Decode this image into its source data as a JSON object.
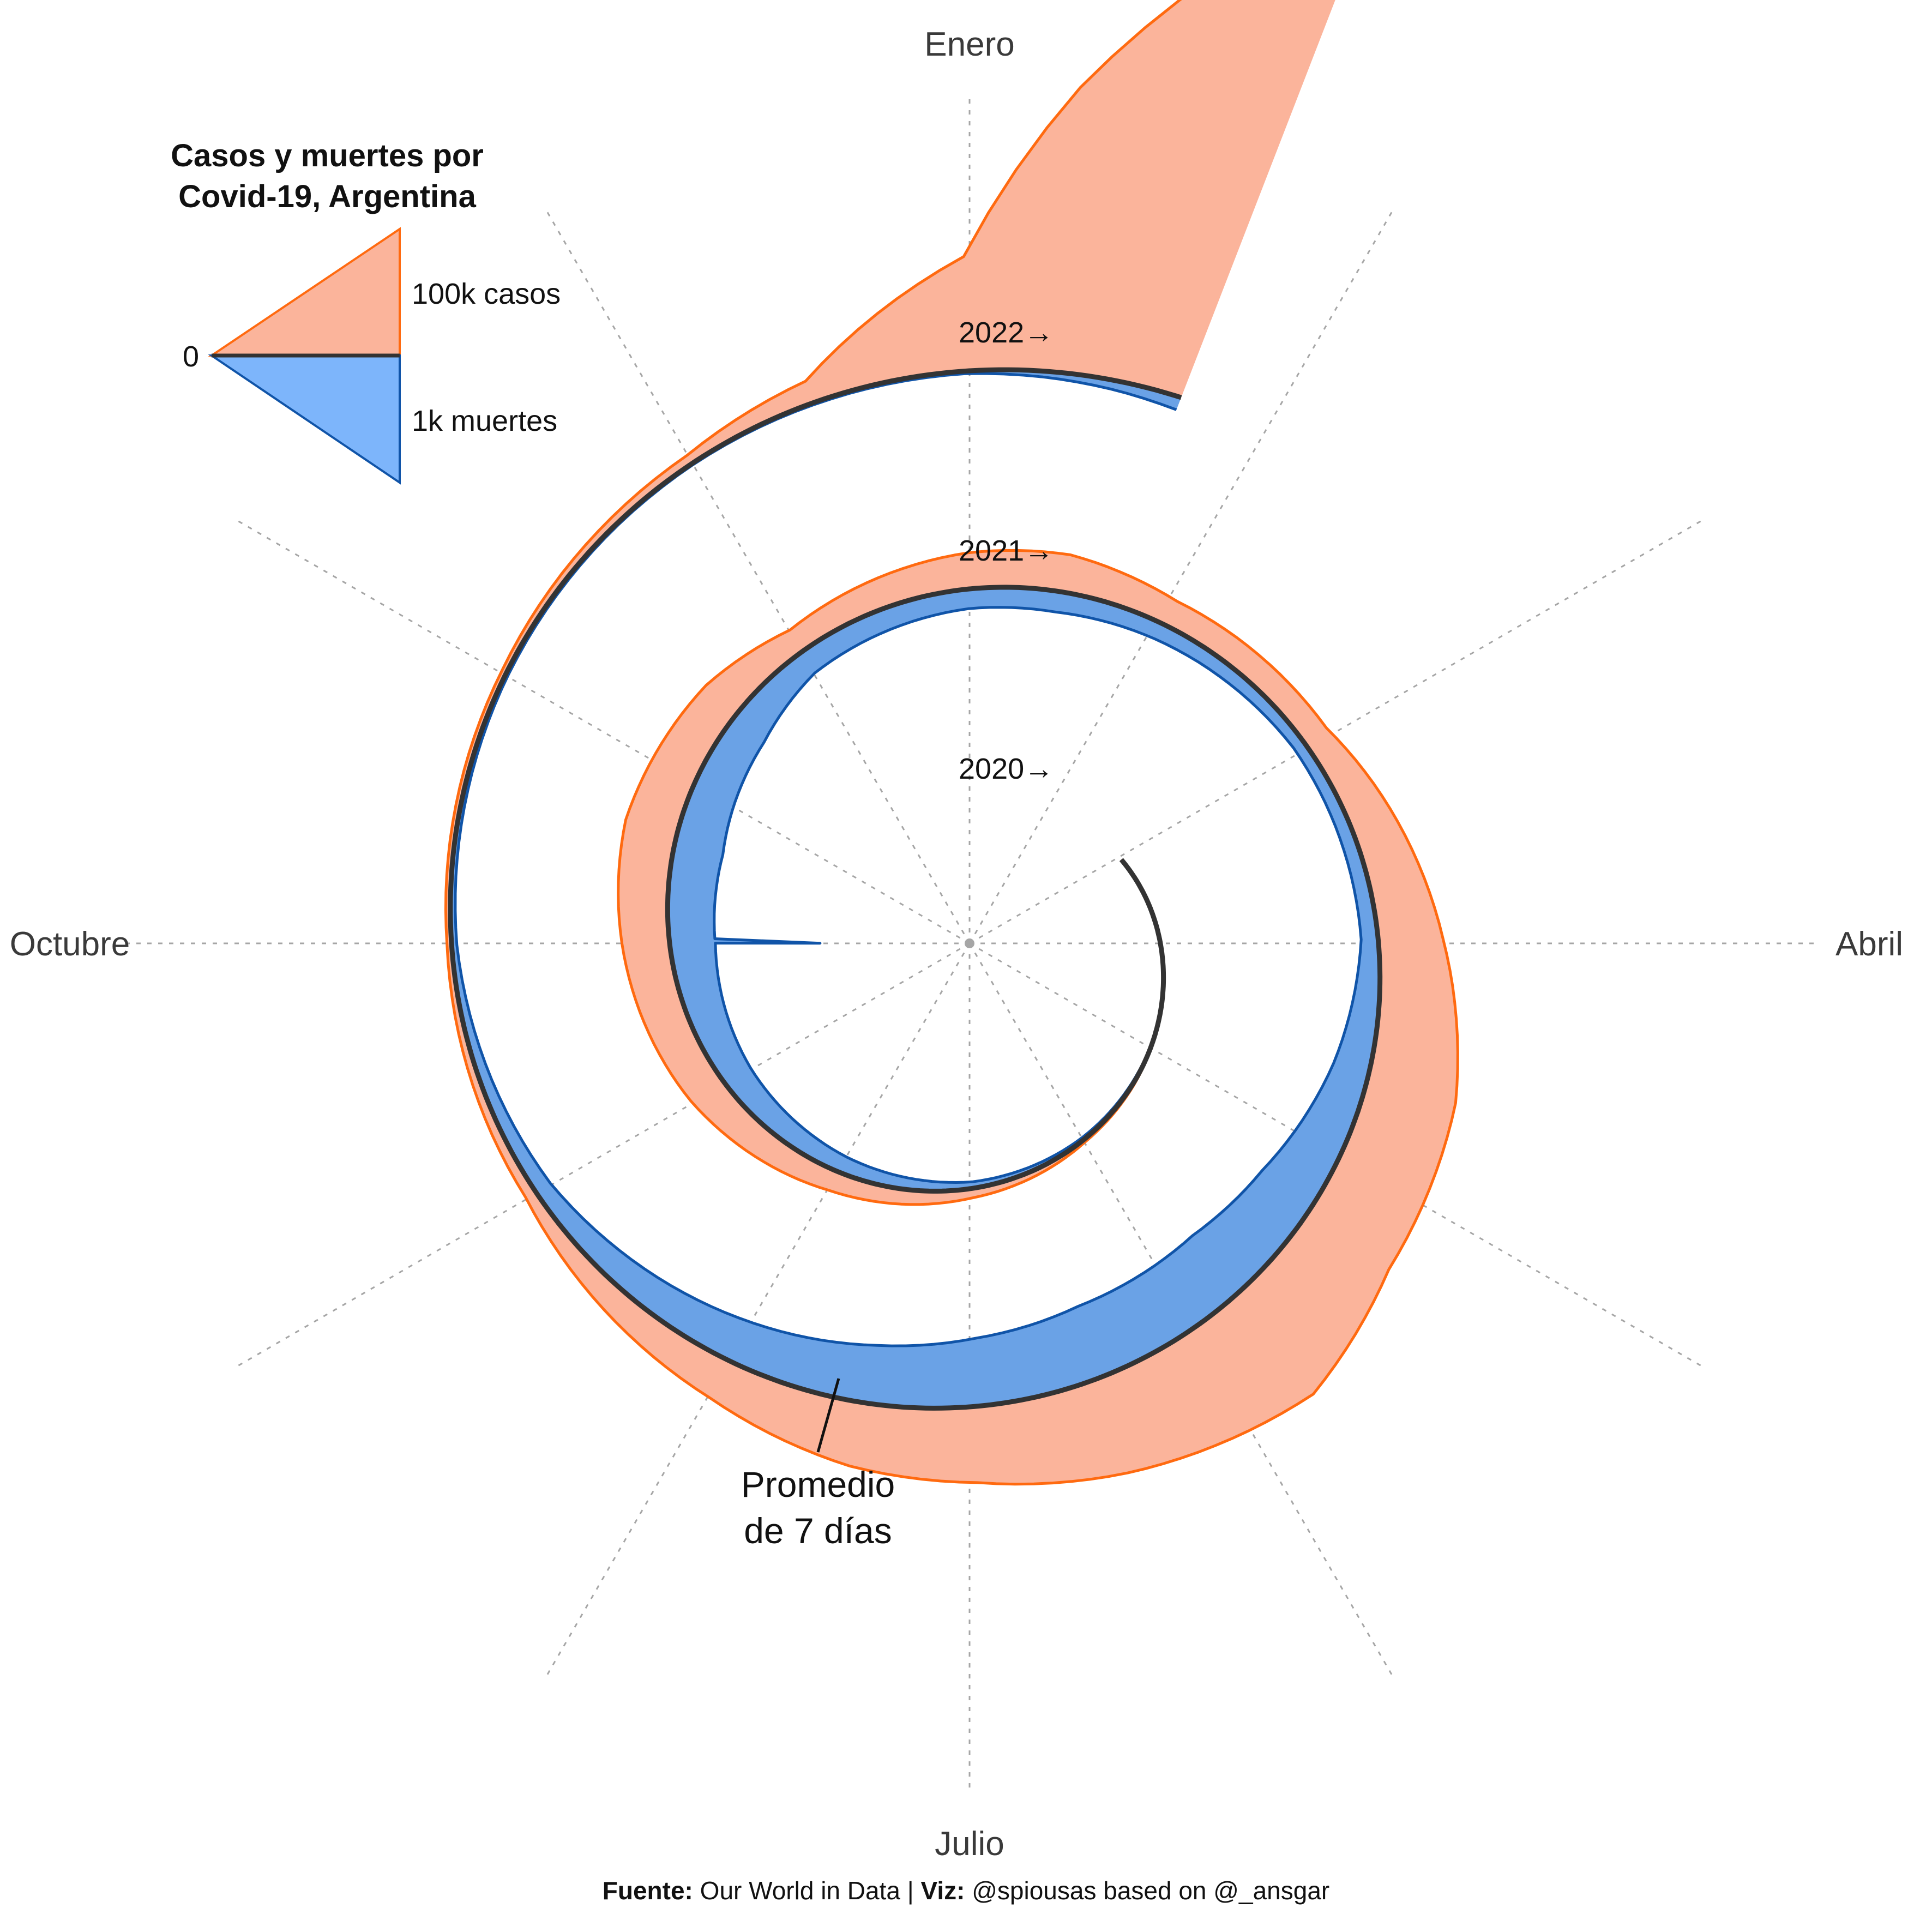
{
  "chart_data": {
    "type": "area",
    "title_lines": [
      "Casos y muertes por",
      "Covid-19, Argentina"
    ],
    "month_labels": [
      {
        "label": "Enero",
        "month": 0
      },
      {
        "label": "Abril",
        "month": 3
      },
      {
        "label": "Julio",
        "month": 6
      },
      {
        "label": "Octubre",
        "month": 9
      }
    ],
    "year_labels": [
      "2020→",
      "2021→",
      "2022→"
    ],
    "legend": {
      "zero_label": "0",
      "cases_label": "100k casos",
      "deaths_label": "1k muertes"
    },
    "annotation": [
      "Promedio",
      "de 7 días"
    ],
    "colors": {
      "cases_fill": "#fbb49b",
      "cases_line": "#ff6a10",
      "deaths_fill": "#6aa2e6",
      "deaths_line": "#1054a8",
      "legend_deaths_fill": "#7db5fb",
      "baseline": "#333333",
      "grid": "#a6a6a6"
    },
    "series": [
      {
        "name": "casos",
        "unit": "casos diarios (promedio 7 días)",
        "points": [
          {
            "date": "2020-03-03",
            "value": 0
          },
          {
            "date": "2020-05-01",
            "value": 150
          },
          {
            "date": "2020-06-01",
            "value": 700
          },
          {
            "date": "2020-07-01",
            "value": 2500
          },
          {
            "date": "2020-08-01",
            "value": 5500
          },
          {
            "date": "2020-09-01",
            "value": 10000
          },
          {
            "date": "2020-10-01",
            "value": 12500
          },
          {
            "date": "2020-10-21",
            "value": 14000
          },
          {
            "date": "2020-11-15",
            "value": 11000
          },
          {
            "date": "2020-12-01",
            "value": 6500
          },
          {
            "date": "2020-12-31",
            "value": 9500
          },
          {
            "date": "2021-01-15",
            "value": 10000
          },
          {
            "date": "2021-02-01",
            "value": 7000
          },
          {
            "date": "2021-03-01",
            "value": 7000
          },
          {
            "date": "2021-04-01",
            "value": 17000
          },
          {
            "date": "2021-04-20",
            "value": 24000
          },
          {
            "date": "2021-05-10",
            "value": 26000
          },
          {
            "date": "2021-05-25",
            "value": 33000
          },
          {
            "date": "2021-06-15",
            "value": 26000
          },
          {
            "date": "2021-07-01",
            "value": 20000
          },
          {
            "date": "2021-07-15",
            "value": 17000
          },
          {
            "date": "2021-08-01",
            "value": 11000
          },
          {
            "date": "2021-09-01",
            "value": 3000
          },
          {
            "date": "2021-10-01",
            "value": 1200
          },
          {
            "date": "2021-11-01",
            "value": 1300
          },
          {
            "date": "2021-12-01",
            "value": 2500
          },
          {
            "date": "2021-12-15",
            "value": 6000
          },
          {
            "date": "2021-12-31",
            "value": 30000
          },
          {
            "date": "2022-01-08",
            "value": 75000
          },
          {
            "date": "2022-01-15",
            "value": 110000
          },
          {
            "date": "2022-01-22",
            "value": 130000
          }
        ]
      },
      {
        "name": "muertes",
        "unit": "muertes diarias (promedio 7 días)",
        "points": [
          {
            "date": "2020-03-03",
            "value": 0
          },
          {
            "date": "2020-05-01",
            "value": 5
          },
          {
            "date": "2020-06-01",
            "value": 20
          },
          {
            "date": "2020-07-01",
            "value": 50
          },
          {
            "date": "2020-08-01",
            "value": 130
          },
          {
            "date": "2020-09-01",
            "value": 230
          },
          {
            "date": "2020-10-01",
            "value": 350
          },
          {
            "date": "2020-10-01",
            "value": 1150
          },
          {
            "date": "2020-10-02",
            "value": 350
          },
          {
            "date": "2020-10-21",
            "value": 380
          },
          {
            "date": "2020-11-15",
            "value": 300
          },
          {
            "date": "2020-12-01",
            "value": 190
          },
          {
            "date": "2020-12-31",
            "value": 150
          },
          {
            "date": "2021-01-15",
            "value": 160
          },
          {
            "date": "2021-02-01",
            "value": 130
          },
          {
            "date": "2021-03-01",
            "value": 90
          },
          {
            "date": "2021-04-01",
            "value": 130
          },
          {
            "date": "2021-04-20",
            "value": 280
          },
          {
            "date": "2021-05-10",
            "value": 470
          },
          {
            "date": "2021-05-25",
            "value": 560
          },
          {
            "date": "2021-06-15",
            "value": 570
          },
          {
            "date": "2021-07-01",
            "value": 520
          },
          {
            "date": "2021-07-15",
            "value": 450
          },
          {
            "date": "2021-08-01",
            "value": 340
          },
          {
            "date": "2021-09-01",
            "value": 130
          },
          {
            "date": "2021-10-01",
            "value": 40
          },
          {
            "date": "2021-11-01",
            "value": 20
          },
          {
            "date": "2021-12-01",
            "value": 12
          },
          {
            "date": "2021-12-31",
            "value": 20
          },
          {
            "date": "2022-01-08",
            "value": 45
          },
          {
            "date": "2022-01-15",
            "value": 70
          },
          {
            "date": "2022-01-22",
            "value": 100
          }
        ]
      }
    ]
  },
  "footer": {
    "source_label": "Fuente:",
    "source_value": " Our World in Data | ",
    "viz_label": "Viz:",
    "viz_value": " @spiousas based on @_ansgar"
  }
}
